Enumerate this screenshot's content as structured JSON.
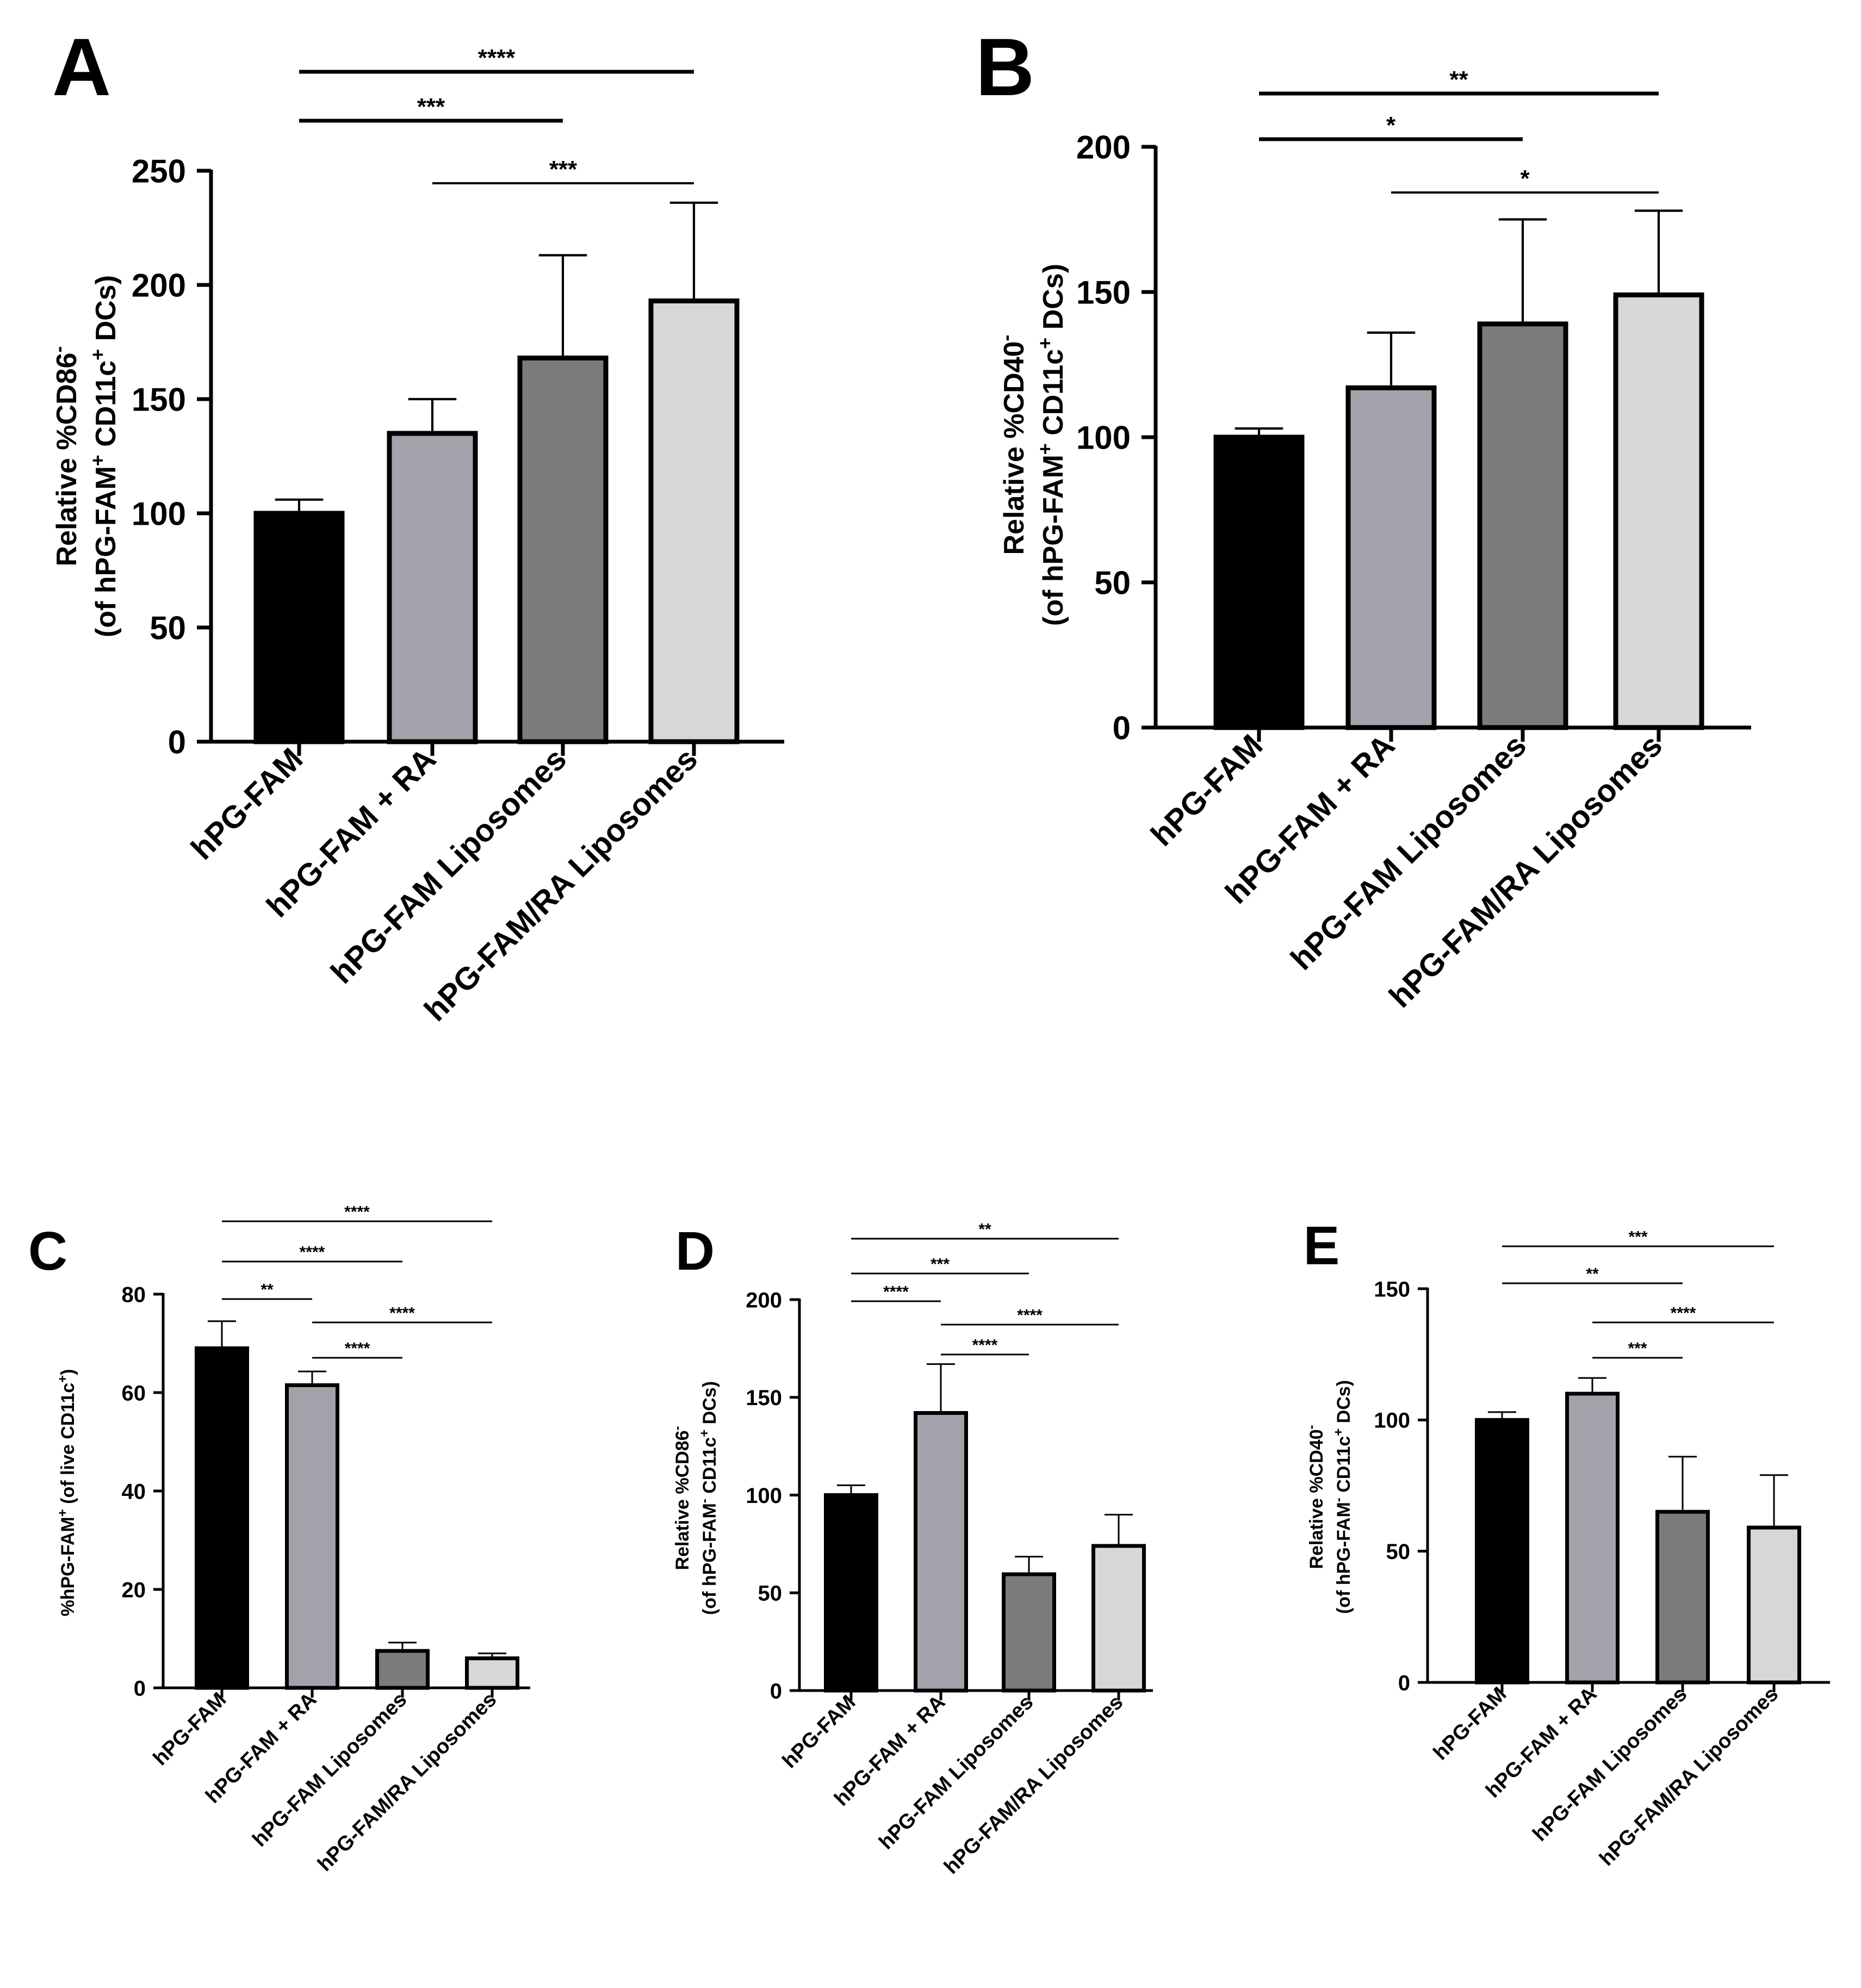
{
  "colors": {
    "hPG-FAM": "#000000",
    "hPG-FAM + RA": "#a2a2aa",
    "hPG-FAM Liposomes": "#7b7b7b",
    "hPG-FAM/RA Liposomes": "#d7d7d7"
  },
  "chart_data": [
    {
      "panel": "A",
      "type": "bar",
      "categories": [
        "hPG-FAM",
        "hPG-FAM + RA",
        "hPG-FAM Liposomes",
        "hPG-FAM/RA Liposomes"
      ],
      "values": [
        100,
        135,
        168,
        193
      ],
      "errors": [
        6,
        15,
        45,
        43
      ],
      "ylim": [
        0,
        250
      ],
      "yticks": [
        0,
        50,
        100,
        150,
        200,
        250
      ],
      "ylabel_line1": "Relative %CD86",
      "ylabel_line1_sup": "-",
      "ylabel_line2": "(of hPG-FAM",
      "ylabel_line2_sup": "+",
      "ylabel_line2_rest": " CD11c",
      "ylabel_line2_sup2": "+",
      "ylabel_line2_end": " DCs)",
      "significance": [
        {
          "from": 0,
          "to": 3,
          "label": "****"
        },
        {
          "from": 0,
          "to": 2,
          "label": "***"
        },
        {
          "from": 1,
          "to": 3,
          "label": "***"
        }
      ]
    },
    {
      "panel": "B",
      "type": "bar",
      "categories": [
        "hPG-FAM",
        "hPG-FAM + RA",
        "hPG-FAM Liposomes",
        "hPG-FAM/RA Liposomes"
      ],
      "values": [
        100,
        117,
        139,
        149
      ],
      "errors": [
        3,
        19,
        36,
        29
      ],
      "ylim": [
        0,
        200
      ],
      "yticks": [
        0,
        50,
        100,
        150,
        200
      ],
      "ylabel_line1": "Relative %CD40",
      "ylabel_line1_sup": "-",
      "ylabel_line2": "(of hPG-FAM",
      "ylabel_line2_sup": "+",
      "ylabel_line2_rest": " CD11c",
      "ylabel_line2_sup2": "+",
      "ylabel_line2_end": " DCs)",
      "significance": [
        {
          "from": 0,
          "to": 3,
          "label": "**"
        },
        {
          "from": 0,
          "to": 2,
          "label": "*"
        },
        {
          "from": 1,
          "to": 3,
          "label": "*"
        }
      ]
    },
    {
      "panel": "C",
      "type": "bar",
      "categories": [
        "hPG-FAM",
        "hPG-FAM + RA",
        "hPG-FAM Liposomes",
        "hPG-FAM/RA Liposomes"
      ],
      "values": [
        69,
        61.5,
        7.5,
        6
      ],
      "errors": [
        5.5,
        2.8,
        1.7,
        1
      ],
      "ylim": [
        0,
        80
      ],
      "yticks": [
        0,
        20,
        40,
        60,
        80
      ],
      "ylabel_line1": "%hPG-FAM",
      "ylabel_line1_sup": "+",
      "ylabel_line1_rest": " (of live CD11c",
      "ylabel_line1_sup2": "+",
      "ylabel_line1_end": ")",
      "significance": [
        {
          "from": 0,
          "to": 3,
          "label": "****"
        },
        {
          "from": 0,
          "to": 2,
          "label": "****"
        },
        {
          "from": 0,
          "to": 1,
          "label": "**"
        },
        {
          "from": 1,
          "to": 3,
          "label": "****"
        },
        {
          "from": 1,
          "to": 2,
          "label": "****"
        }
      ]
    },
    {
      "panel": "D",
      "type": "bar",
      "categories": [
        "hPG-FAM",
        "hPG-FAM + RA",
        "hPG-FAM Liposomes",
        "hPG-FAM/RA Liposomes"
      ],
      "values": [
        100,
        142,
        59.5,
        74
      ],
      "errors": [
        5,
        25,
        9,
        16
      ],
      "ylim": [
        0,
        200
      ],
      "yticks": [
        0,
        50,
        100,
        150,
        200
      ],
      "ylabel_line1": "Relative %CD86",
      "ylabel_line1_sup": "-",
      "ylabel_line2": "(of hPG-FAM",
      "ylabel_line2_sup": "-",
      "ylabel_line2_rest": " CD11c",
      "ylabel_line2_sup2": "+",
      "ylabel_line2_end": " DCs)",
      "significance": [
        {
          "from": 0,
          "to": 3,
          "label": "**"
        },
        {
          "from": 0,
          "to": 2,
          "label": "***"
        },
        {
          "from": 0,
          "to": 1,
          "label": "****"
        },
        {
          "from": 1,
          "to": 3,
          "label": "****"
        },
        {
          "from": 1,
          "to": 2,
          "label": "****"
        }
      ]
    },
    {
      "panel": "E",
      "type": "bar",
      "categories": [
        "hPG-FAM",
        "hPG-FAM + RA",
        "hPG-FAM Liposomes",
        "hPG-FAM/RA Liposomes"
      ],
      "values": [
        100,
        110,
        65,
        59
      ],
      "errors": [
        3,
        6,
        21,
        20
      ],
      "ylim": [
        0,
        150
      ],
      "yticks": [
        0,
        50,
        100,
        150
      ],
      "ylabel_line1": "Relative %CD40",
      "ylabel_line1_sup": "-",
      "ylabel_line2": "(of hPG-FAM",
      "ylabel_line2_sup": "-",
      "ylabel_line2_rest": " CD11c",
      "ylabel_line2_sup2": "+",
      "ylabel_line2_end": " DCs)",
      "significance": [
        {
          "from": 0,
          "to": 3,
          "label": "***"
        },
        {
          "from": 0,
          "to": 2,
          "label": "**"
        },
        {
          "from": 1,
          "to": 3,
          "label": "****"
        },
        {
          "from": 1,
          "to": 2,
          "label": "***"
        }
      ]
    }
  ]
}
